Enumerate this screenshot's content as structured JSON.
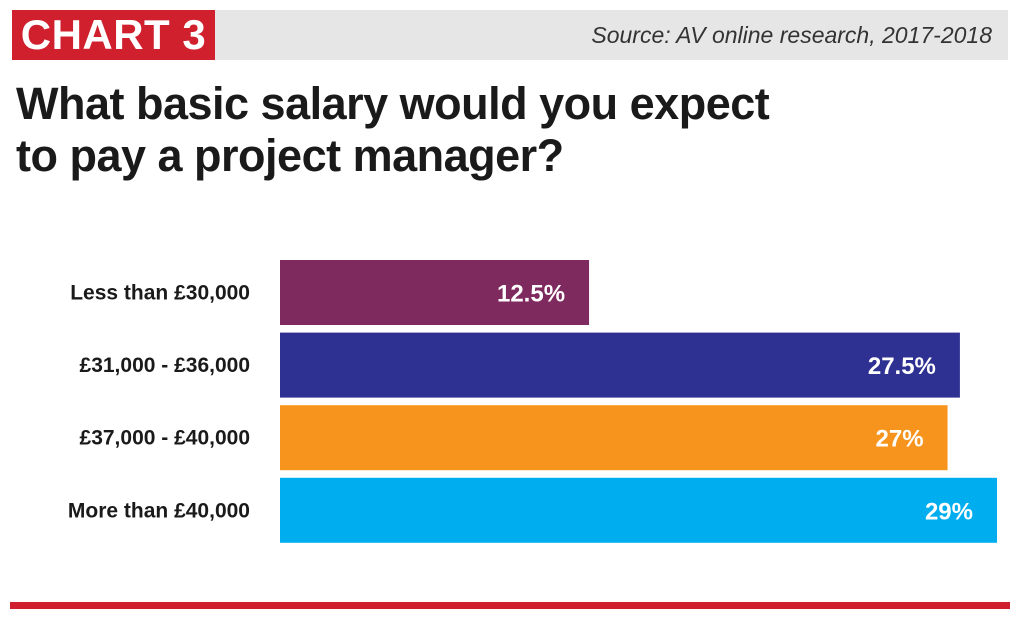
{
  "header": {
    "badge": "CHART 3",
    "source": "Source: AV online research, 2017-2018"
  },
  "question": "What basic salary would you expect to pay a project manager?",
  "colors": {
    "badge": "#d0202e",
    "header_bg": "#e6e6e6",
    "footer_rule": "#d0202e"
  },
  "chart_data": {
    "type": "bar",
    "orientation": "horizontal",
    "categories": [
      "Less than £30,000",
      "£31,000 - £36,000",
      "£37,000 - £40,000",
      "More than £40,000"
    ],
    "values": [
      12.5,
      27.5,
      27,
      29
    ],
    "value_labels": [
      "12.5%",
      "27.5%",
      "27%",
      "29%"
    ],
    "colors": [
      "#7f2a5e",
      "#2e3192",
      "#f7941d",
      "#00aeef"
    ],
    "unit": "%",
    "xlim": [
      0,
      29
    ],
    "grid": false,
    "legend": "none"
  }
}
